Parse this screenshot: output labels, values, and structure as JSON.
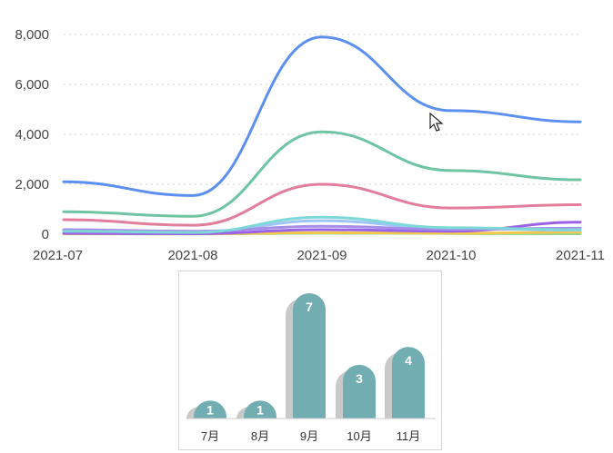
{
  "chart_data": [
    {
      "type": "line",
      "x": [
        "2021-07",
        "2021-08",
        "2021-09",
        "2021-10",
        "2021-11"
      ],
      "ylim": [
        0,
        8000
      ],
      "yticks": [
        0,
        2000,
        4000,
        6000,
        8000
      ],
      "ytick_labels": [
        "0",
        "2,000",
        "4,000",
        "6,000",
        "8,000"
      ],
      "grid": "horizontal dotted",
      "series": [
        {
          "color": "#5b8ff0",
          "values": [
            2100,
            1550,
            7900,
            4950,
            4500
          ]
        },
        {
          "color": "#6fc4a4",
          "values": [
            900,
            720,
            4100,
            2550,
            2180
          ]
        },
        {
          "color": "#e27d9c",
          "values": [
            580,
            360,
            2000,
            1050,
            1180
          ]
        },
        {
          "color": "#7fd8d8",
          "values": [
            120,
            70,
            680,
            260,
            180
          ]
        },
        {
          "color": "#a58ee8",
          "values": [
            180,
            120,
            320,
            200,
            240
          ]
        },
        {
          "color": "#9a62e8",
          "values": [
            30,
            20,
            180,
            120,
            480
          ]
        },
        {
          "color": "#9ec5f5",
          "values": [
            110,
            60,
            540,
            230,
            160
          ]
        },
        {
          "color": "#f2c74f",
          "values": [
            20,
            15,
            60,
            40,
            80
          ]
        },
        {
          "color": "#8fd68f",
          "values": [
            15,
            10,
            40,
            30,
            20
          ]
        }
      ]
    },
    {
      "type": "bar",
      "categories": [
        "7月",
        "8月",
        "9月",
        "10月",
        "11月"
      ],
      "values": [
        1,
        1,
        7,
        3,
        4
      ],
      "ylim": [
        0,
        7
      ],
      "bar_color": "#72aeb1",
      "shadow_color": "#c9c9c9"
    }
  ]
}
